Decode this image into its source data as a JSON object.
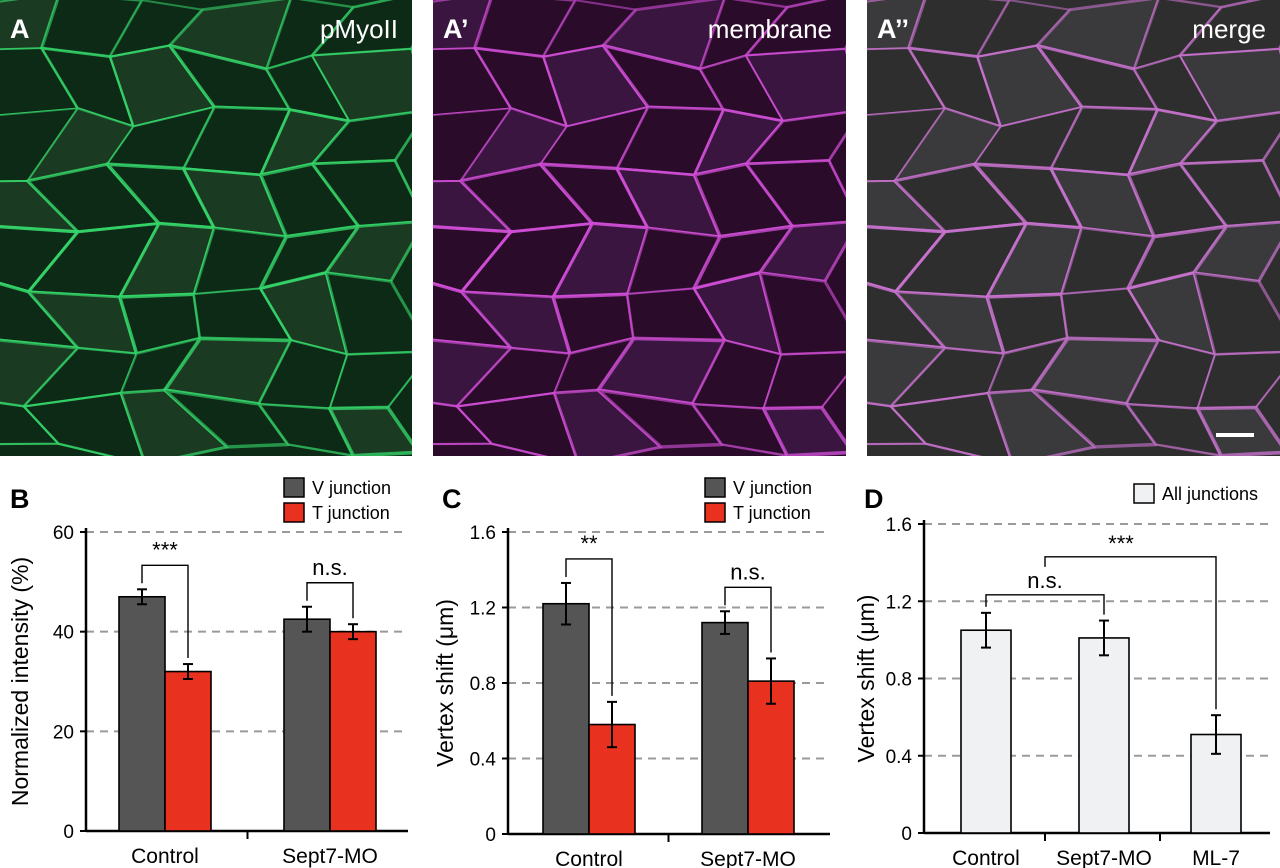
{
  "micro_panels": [
    {
      "letter": "A",
      "tag": "pMyoII",
      "colors": {
        "bg": "#0d2a17",
        "bg2": "#1b3a22",
        "edge": "#35d66a"
      }
    },
    {
      "letter": "A’",
      "tag": "membrane",
      "colors": {
        "bg": "#2a0b2a",
        "bg2": "#3a1540",
        "edge": "#d24fd8"
      }
    },
    {
      "letter": "A’’",
      "tag": "merge",
      "colors": {
        "bg": "#2e2e2e",
        "bg2": "#3a3a3c",
        "edge": "#c973d0"
      }
    }
  ],
  "chart_data": [
    {
      "type": "bar",
      "letter": "B",
      "ylabel": "Normalized intensity (%)",
      "categories": [
        "Control",
        "Sept7-MO"
      ],
      "series": [
        {
          "name": "V junction",
          "color": "#555555",
          "values": [
            47,
            42.5
          ],
          "errors": [
            1.5,
            2.5
          ]
        },
        {
          "name": "T junction",
          "color": "#e8311f",
          "values": [
            32,
            40
          ],
          "errors": [
            1.5,
            1.5
          ]
        }
      ],
      "ylim": [
        0,
        60
      ],
      "yticks": [
        "0",
        "20",
        "40",
        "60"
      ],
      "grid": true,
      "legend": "top-right",
      "annotations": [
        "***",
        "n.s."
      ]
    },
    {
      "type": "bar",
      "letter": "C",
      "ylabel": "Vertex shift (μm)",
      "categories": [
        "Control",
        "Sept7-MO"
      ],
      "series": [
        {
          "name": "V junction",
          "color": "#555555",
          "values": [
            1.22,
            1.12
          ],
          "errors": [
            0.11,
            0.06
          ]
        },
        {
          "name": "T junction",
          "color": "#e8311f",
          "values": [
            0.58,
            0.81
          ],
          "errors": [
            0.12,
            0.12
          ]
        }
      ],
      "ylim": [
        0,
        1.6
      ],
      "yticks": [
        "0",
        "0.4",
        "0.8",
        "1.2",
        "1.6"
      ],
      "grid": true,
      "legend": "top-right",
      "annotations": [
        "**",
        "n.s."
      ]
    },
    {
      "type": "bar",
      "letter": "D",
      "ylabel": "Vertex shift (μm)",
      "categories": [
        "Control",
        "Sept7-MO",
        "ML-7"
      ],
      "series": [
        {
          "name": "All junctions",
          "color": "#f0f1f3",
          "values": [
            1.05,
            1.01,
            0.51
          ],
          "errors": [
            0.09,
            0.09,
            0.1
          ]
        }
      ],
      "ylim": [
        0,
        1.6
      ],
      "yticks": [
        "0",
        "0.4",
        "0.8",
        "1.2",
        "1.6"
      ],
      "grid": true,
      "legend": "top-right",
      "annotations": [
        "n.s.",
        "***"
      ]
    }
  ]
}
